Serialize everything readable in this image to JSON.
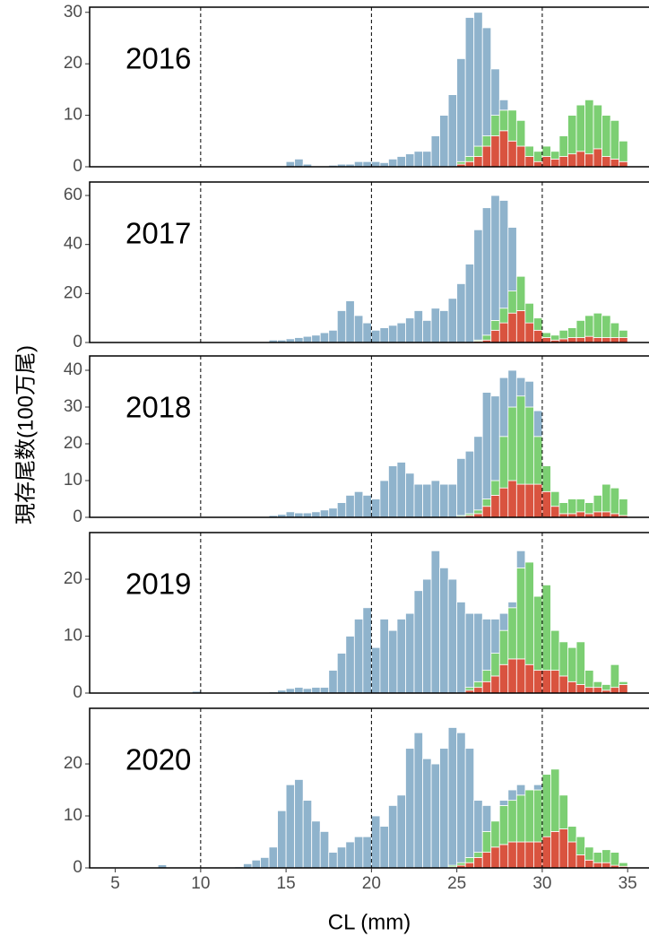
{
  "chart_data": {
    "type": "histogram",
    "xlabel": "CL (mm)",
    "ylabel": "現存尾数(100万尾)",
    "xlim": [
      3.5,
      36.25
    ],
    "xticks": [
      5,
      10,
      15,
      20,
      25,
      30,
      35
    ],
    "vlines": [
      10,
      20,
      30
    ],
    "bins": [
      7,
      7.5,
      8,
      8.5,
      9,
      9.5,
      10,
      10.5,
      11,
      11.5,
      12,
      12.5,
      13,
      13.5,
      14,
      14.5,
      15,
      15.5,
      16,
      16.5,
      17,
      17.5,
      18,
      18.5,
      19,
      19.5,
      20,
      20.5,
      21,
      21.5,
      22,
      22.5,
      23,
      23.5,
      24,
      24.5,
      25,
      25.5,
      26,
      26.5,
      27,
      27.5,
      28,
      28.5,
      29,
      29.5,
      30,
      30.5,
      31,
      31.5,
      32,
      32.5,
      33,
      33.5,
      34,
      34.5,
      35
    ],
    "panels": [
      {
        "title": "2016",
        "ylim": [
          0,
          31
        ],
        "yticks": [
          0,
          10,
          20,
          30
        ],
        "series": [
          {
            "color": "#d9533f",
            "values": [
              0,
              0,
              0,
              0,
              0,
              0,
              0,
              0,
              0,
              0,
              0,
              0,
              0,
              0,
              0,
              0,
              0,
              0,
              0,
              0,
              0,
              0,
              0,
              0,
              0,
              0,
              0,
              0,
              0,
              0,
              0,
              0,
              0,
              0,
              0,
              0,
              0.5,
              1,
              2,
              4,
              6,
              7,
              5,
              4,
              2,
              1,
              2,
              1.5,
              2,
              2.5,
              3,
              2.5,
              3.5,
              2,
              1.5,
              1
            ]
          },
          {
            "color": "#7ccf73",
            "values": [
              0,
              0,
              0,
              0,
              0,
              0,
              0,
              0,
              0,
              0,
              0,
              0,
              0,
              0,
              0,
              0,
              0,
              0,
              0,
              0,
              0,
              0,
              0,
              0,
              0,
              0,
              0,
              0,
              0,
              0,
              0,
              0,
              0,
              0,
              0,
              0,
              0.5,
              1,
              2,
              2,
              4,
              4,
              6,
              5,
              2,
              2,
              2,
              1.5,
              4,
              7.5,
              9,
              10.5,
              8.5,
              8,
              7.5,
              4
            ]
          },
          {
            "color": "#8fb3cc",
            "values": [
              0,
              0,
              0,
              0,
              0,
              0,
              0,
              0,
              0,
              0,
              0,
              0,
              0,
              0,
              0,
              0,
              1,
              1.5,
              0.5,
              0,
              0,
              0.3,
              0.5,
              0.5,
              1,
              1,
              1,
              0.8,
              1.5,
              2,
              2.5,
              3,
              3,
              6,
              10,
              14,
              20,
              27,
              26,
              21,
              9,
              2,
              0,
              0,
              0,
              0,
              0,
              0,
              0,
              0,
              0,
              0,
              0,
              0,
              0,
              0
            ]
          }
        ]
      },
      {
        "title": "2017",
        "ylim": [
          0,
          65.5
        ],
        "yticks": [
          0,
          20,
          40,
          60
        ],
        "series": [
          {
            "color": "#d9533f",
            "values": [
              0,
              0,
              0,
              0,
              0,
              0,
              0,
              0,
              0,
              0,
              0,
              0,
              0,
              0,
              0,
              0,
              0,
              0,
              0,
              0,
              0,
              0,
              0,
              0,
              0,
              0,
              0,
              0,
              0,
              0,
              0,
              0,
              0,
              0,
              0,
              0,
              0,
              0,
              0.5,
              1,
              5,
              8,
              12,
              13,
              8,
              5,
              2,
              1,
              1.5,
              2,
              2,
              2.5,
              2,
              2,
              2,
              2
            ]
          },
          {
            "color": "#7ccf73",
            "values": [
              0,
              0,
              0,
              0,
              0,
              0,
              0,
              0,
              0,
              0,
              0,
              0,
              0,
              0,
              0,
              0,
              0,
              0,
              0,
              0,
              0,
              0,
              0,
              0,
              0,
              0,
              0,
              0,
              0,
              0,
              0,
              0,
              0,
              0,
              0,
              0,
              0,
              0,
              0.5,
              2,
              4,
              6,
              9,
              14,
              8,
              5,
              2,
              2,
              3.5,
              4,
              7,
              8.5,
              10,
              9,
              6,
              3
            ]
          },
          {
            "color": "#8fb3cc",
            "values": [
              0,
              0,
              0,
              0,
              0,
              0,
              0,
              0,
              0,
              0,
              0,
              0,
              0,
              0,
              1,
              1,
              1.5,
              2,
              2.5,
              3,
              4,
              5,
              13,
              17,
              11,
              8,
              5,
              6,
              7,
              8,
              10,
              13,
              9,
              14,
              13,
              18,
              24,
              32,
              45,
              52,
              51,
              44,
              26,
              0,
              0,
              0,
              0,
              0,
              0,
              0,
              0,
              0,
              0,
              0,
              0,
              0
            ]
          }
        ]
      },
      {
        "title": "2018",
        "ylim": [
          0,
          43.9
        ],
        "yticks": [
          0,
          10,
          20,
          30,
          40
        ],
        "series": [
          {
            "color": "#d9533f",
            "values": [
              0,
              0,
              0,
              0,
              0,
              0,
              0,
              0,
              0,
              0,
              0,
              0,
              0,
              0,
              0,
              0,
              0,
              0,
              0,
              0,
              0,
              0,
              0,
              0,
              0,
              0,
              0,
              0,
              0,
              0,
              0,
              0,
              0,
              0,
              0,
              0,
              0.2,
              0.5,
              1,
              3,
              6,
              8,
              10,
              9,
              9,
              9,
              7,
              3,
              1,
              1,
              1.5,
              1,
              1.5,
              1.5,
              1,
              0.5
            ]
          },
          {
            "color": "#7ccf73",
            "values": [
              0,
              0,
              0,
              0,
              0,
              0,
              0,
              0,
              0,
              0,
              0,
              0,
              0,
              0,
              0,
              0,
              0,
              0,
              0,
              0,
              0,
              0,
              0,
              0,
              0,
              0,
              0,
              0,
              0,
              0,
              0,
              0,
              0,
              0,
              0,
              0,
              0.3,
              0.5,
              1,
              2,
              4,
              14,
              20,
              24,
              21,
              13,
              7,
              4,
              3,
              4,
              3.5,
              3,
              4.5,
              7.5,
              7,
              4.5
            ]
          },
          {
            "color": "#8fb3cc",
            "values": [
              0,
              0,
              0,
              0,
              0,
              0,
              0,
              0,
              0,
              0,
              0.2,
              0.2,
              0,
              0,
              0.5,
              0.8,
              1.5,
              1.2,
              1.2,
              1.5,
              2,
              2.5,
              4,
              6,
              7,
              6,
              5,
              10,
              14,
              15,
              12,
              9,
              9,
              10,
              9,
              9,
              15.5,
              17,
              20,
              29,
              23,
              16,
              10,
              5,
              7,
              7,
              0,
              0,
              0,
              0,
              0,
              0,
              0,
              0,
              0,
              0
            ]
          }
        ]
      },
      {
        "title": "2019",
        "ylim": [
          0,
          28.2
        ],
        "yticks": [
          0,
          10,
          20
        ],
        "series": [
          {
            "color": "#d9533f",
            "values": [
              0,
              0,
              0,
              0,
              0,
              0,
              0,
              0,
              0,
              0,
              0,
              0,
              0,
              0,
              0,
              0,
              0,
              0,
              0,
              0,
              0,
              0,
              0,
              0,
              0,
              0,
              0,
              0,
              0,
              0,
              0,
              0,
              0,
              0,
              0,
              0,
              0,
              0.5,
              1,
              2,
              3,
              5,
              6,
              6,
              5,
              4,
              4,
              4,
              3,
              2,
              1.5,
              1,
              1,
              0.5,
              1,
              1.5
            ]
          },
          {
            "color": "#7ccf73",
            "values": [
              0,
              0,
              0,
              0,
              0,
              0,
              0,
              0,
              0,
              0,
              0,
              0,
              0,
              0,
              0,
              0,
              0,
              0,
              0,
              0,
              0,
              0,
              0,
              0,
              0,
              0,
              0,
              0,
              0,
              0,
              0,
              0,
              0,
              0,
              0,
              0,
              0,
              0.5,
              1,
              2,
              4,
              6,
              9,
              16,
              18,
              13,
              15,
              7,
              6,
              6,
              7.5,
              3,
              1,
              1,
              4,
              0.5
            ]
          },
          {
            "color": "#8fb3cc",
            "values": [
              0,
              0,
              0,
              0,
              0,
              0.3,
              0,
              0,
              0,
              0,
              0,
              0,
              0,
              0,
              0.2,
              0.5,
              0.8,
              1,
              0.8,
              1,
              1,
              4,
              7,
              10,
              13,
              15,
              8,
              13,
              11,
              13,
              14,
              18,
              20,
              25,
              22,
              20,
              16,
              13,
              12,
              9,
              6,
              3,
              1,
              3,
              0,
              0,
              0,
              0,
              0,
              0,
              0,
              0,
              0,
              0,
              0,
              0
            ]
          }
        ]
      },
      {
        "title": "2020",
        "ylim": [
          0,
          30.7
        ],
        "yticks": [
          0,
          10,
          20
        ],
        "series": [
          {
            "color": "#d9533f",
            "values": [
              0,
              0,
              0,
              0,
              0,
              0,
              0,
              0,
              0,
              0,
              0,
              0,
              0,
              0,
              0,
              0,
              0,
              0,
              0,
              0,
              0,
              0,
              0,
              0,
              0,
              0,
              0,
              0,
              0,
              0,
              0,
              0,
              0,
              0,
              0,
              0.2,
              0.5,
              1,
              2,
              3,
              4,
              4.5,
              5,
              5,
              5,
              5,
              6,
              7,
              7.5,
              5,
              2.5,
              1.5,
              1,
              1,
              0.5,
              0.3
            ]
          },
          {
            "color": "#7ccf73",
            "values": [
              0,
              0,
              0,
              0,
              0,
              0,
              0,
              0,
              0,
              0,
              0,
              0,
              0,
              0,
              0,
              0,
              0,
              0,
              0,
              0,
              0,
              0,
              0,
              0,
              0,
              0,
              0,
              0,
              0,
              0,
              0,
              0,
              0,
              0,
              0,
              0.3,
              0.5,
              1,
              1,
              4,
              5,
              7.5,
              8,
              9,
              10,
              10,
              12,
              12,
              6.5,
              3,
              3.5,
              2.5,
              2,
              2.5,
              2.5,
              0.7
            ]
          },
          {
            "color": "#8fb3cc",
            "values": [
              0,
              0.6,
              0,
              0,
              0,
              0,
              0,
              0,
              0,
              0,
              0.2,
              0.8,
              1.5,
              2,
              4,
              11,
              16,
              17,
              13,
              9,
              7,
              3,
              4,
              5,
              6,
              6,
              10,
              8,
              12,
              14,
              23,
              26,
              21,
              20,
              23,
              26.5,
              25,
              21,
              10,
              5,
              0,
              1,
              2,
              2,
              0,
              1,
              0,
              0,
              0,
              0,
              0,
              0,
              0,
              0,
              0,
              0
            ]
          }
        ]
      }
    ]
  }
}
